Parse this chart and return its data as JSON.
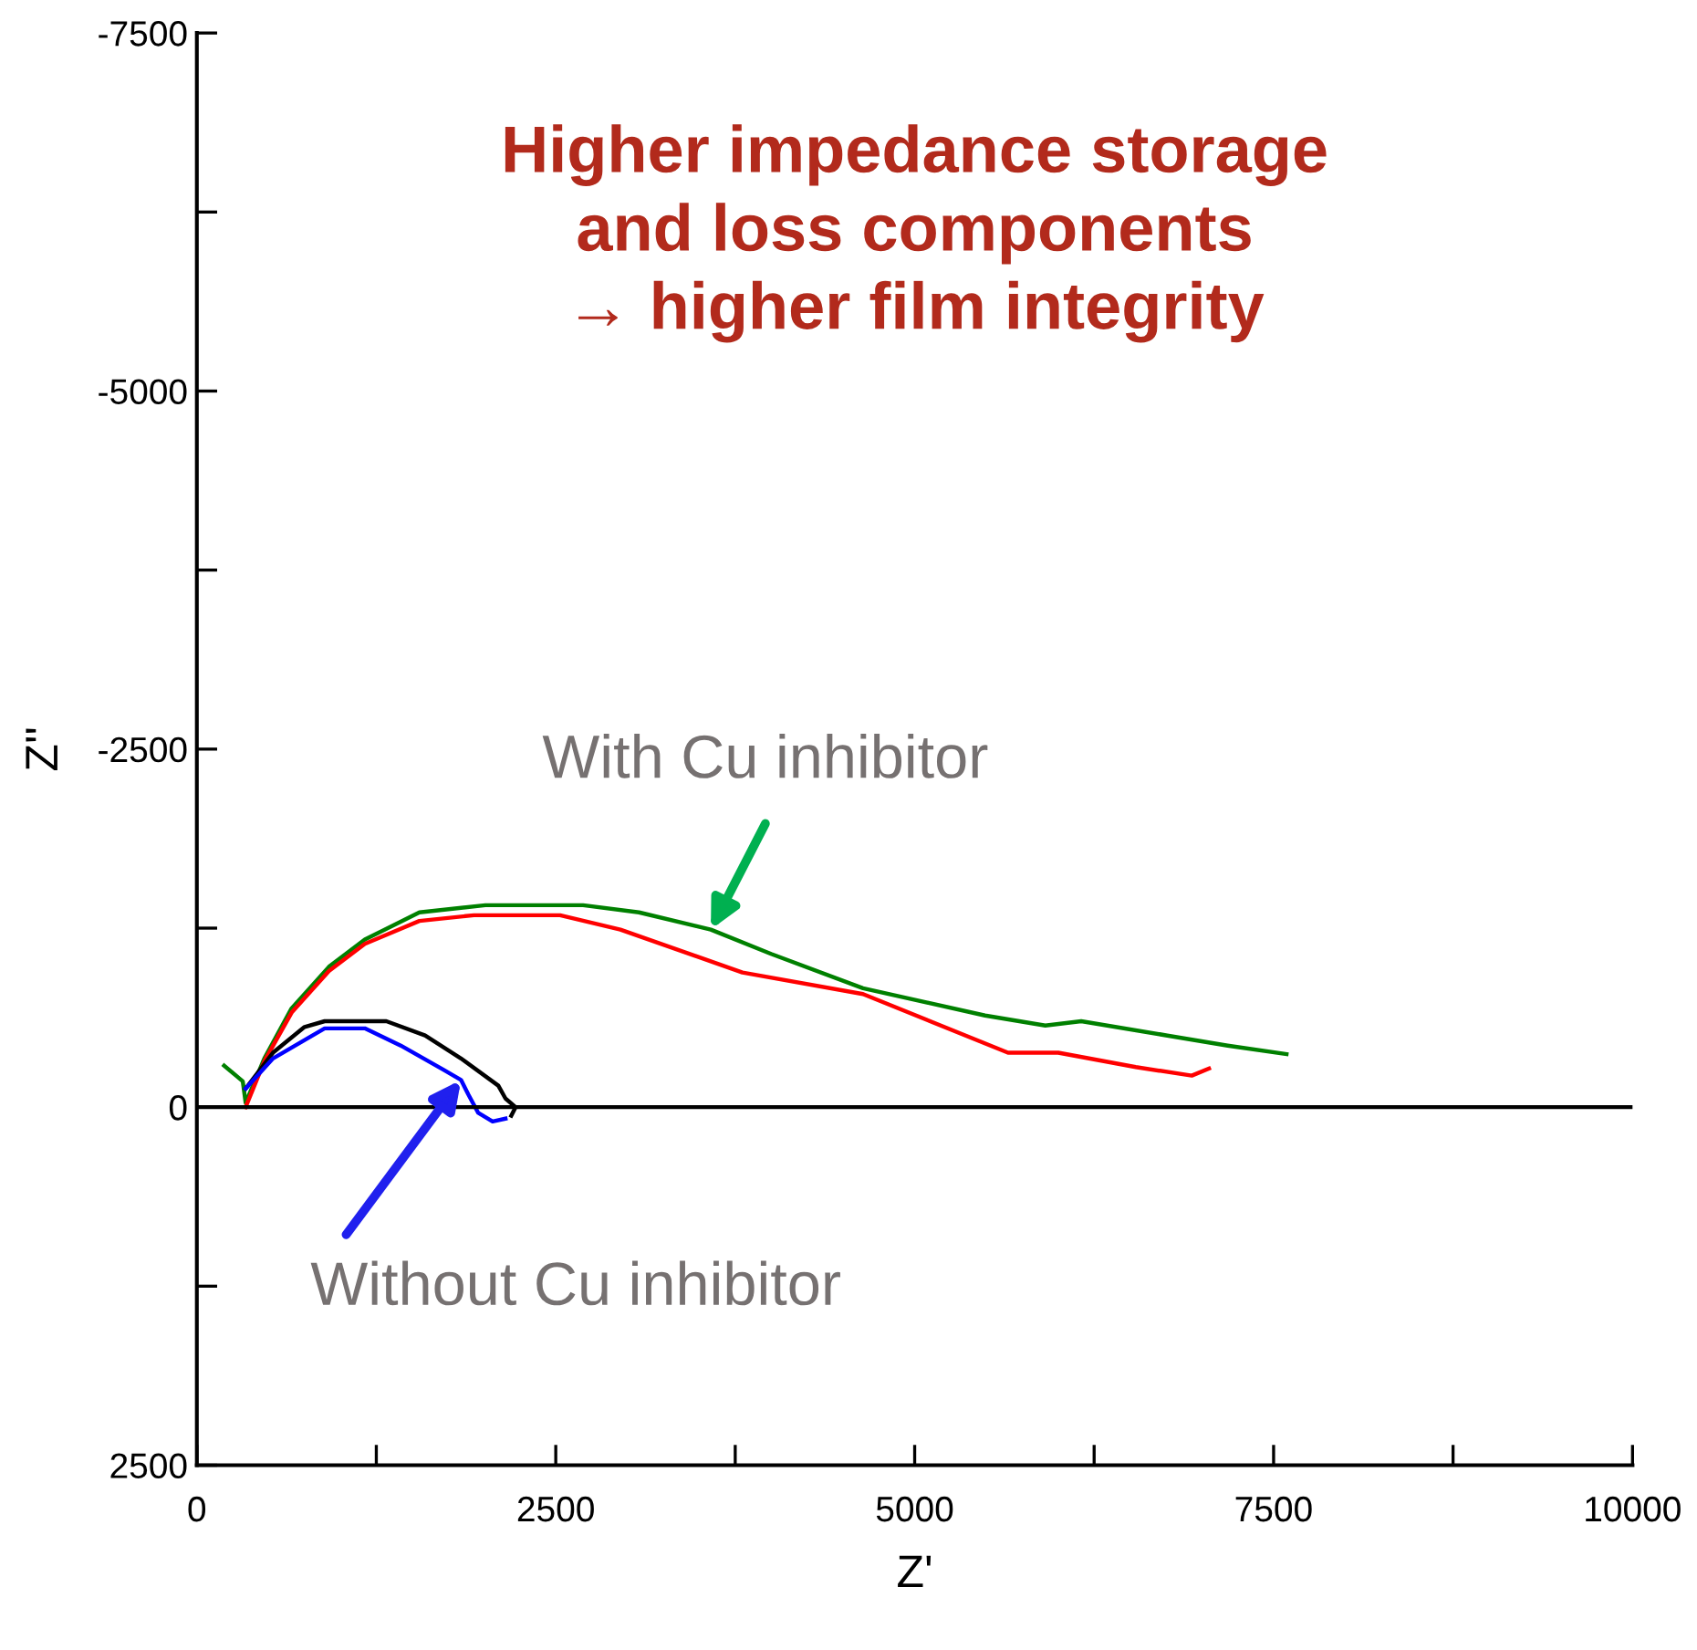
{
  "chart_data": {
    "type": "line",
    "xlabel": "Z'",
    "ylabel": "Z''",
    "xlim": [
      0,
      10000
    ],
    "ylim": [
      2500,
      -7500
    ],
    "xticks": [
      0,
      {
        "value": 1250,
        "label": null
      },
      2500,
      {
        "value": 3750,
        "label": null
      },
      5000,
      {
        "value": 6250,
        "label": null
      },
      7500,
      {
        "value": 8750,
        "label": null
      },
      10000
    ],
    "yticks": [
      -7500,
      {
        "value": -6250,
        "label": null
      },
      -5000,
      {
        "value": -3750,
        "label": null
      },
      {
        "value": -2500,
        "label": "-2500"
      },
      {
        "value": -1250,
        "label": null
      },
      0,
      {
        "value": 1250,
        "label": null
      },
      2500
    ],
    "grid": false,
    "legend": false,
    "marker": "none",
    "line_style": "solid",
    "ref_lines": [
      {
        "axis": "y",
        "value": 0,
        "color": "#000000"
      }
    ],
    "annotations": [
      "Higher impedance storage\nand loss components\n→ higher film integrity",
      {
        "text": "With Cu inhibitor",
        "x": 3580,
        "y": -1240
      },
      {
        "text": "Without Cu inhibitor",
        "x": 1840,
        "y": -190
      }
    ],
    "series": [
      {
        "color": "#008000",
        "x": [
          190,
          320,
          340,
          470,
          660,
          920,
          1170,
          1550,
          2010,
          2690,
          3080,
          3580,
          4000,
          4640,
          5490,
          5910,
          6160,
          6760,
          7180,
          7590
        ],
        "values": [
          -290,
          -180,
          -30,
          -340,
          -690,
          -980,
          -1170,
          -1360,
          -1410,
          -1410,
          -1360,
          -1240,
          -1070,
          -830,
          -640,
          -570,
          -600,
          -500,
          -430,
          -370
        ]
      },
      {
        "color": "#ff0000",
        "x": [
          340,
          470,
          660,
          920,
          1170,
          1550,
          1930,
          2530,
          2950,
          3800,
          4640,
          5650,
          6000,
          6540,
          6930,
          7050
        ],
        "values": [
          0,
          -320,
          -660,
          -950,
          -1140,
          -1300,
          -1340,
          -1340,
          -1240,
          -940,
          -790,
          -380,
          -380,
          -280,
          -220,
          -270
        ]
      },
      {
        "color": "#000000",
        "x": [
          340,
          530,
          750,
          890,
          1320,
          1590,
          1840,
          2100,
          2150,
          2220,
          2190
        ],
        "values": [
          -130,
          -380,
          -560,
          -600,
          -600,
          -500,
          -340,
          -150,
          -60,
          0,
          60
        ]
      },
      {
        "color": "#0000ff",
        "x": [
          340,
          530,
          890,
          1170,
          1420,
          1720,
          1840,
          1890,
          1960,
          2060,
          2150
        ],
        "values": [
          -130,
          -340,
          -550,
          -550,
          -430,
          -260,
          -190,
          -90,
          40,
          100,
          80
        ]
      }
    ]
  }
}
